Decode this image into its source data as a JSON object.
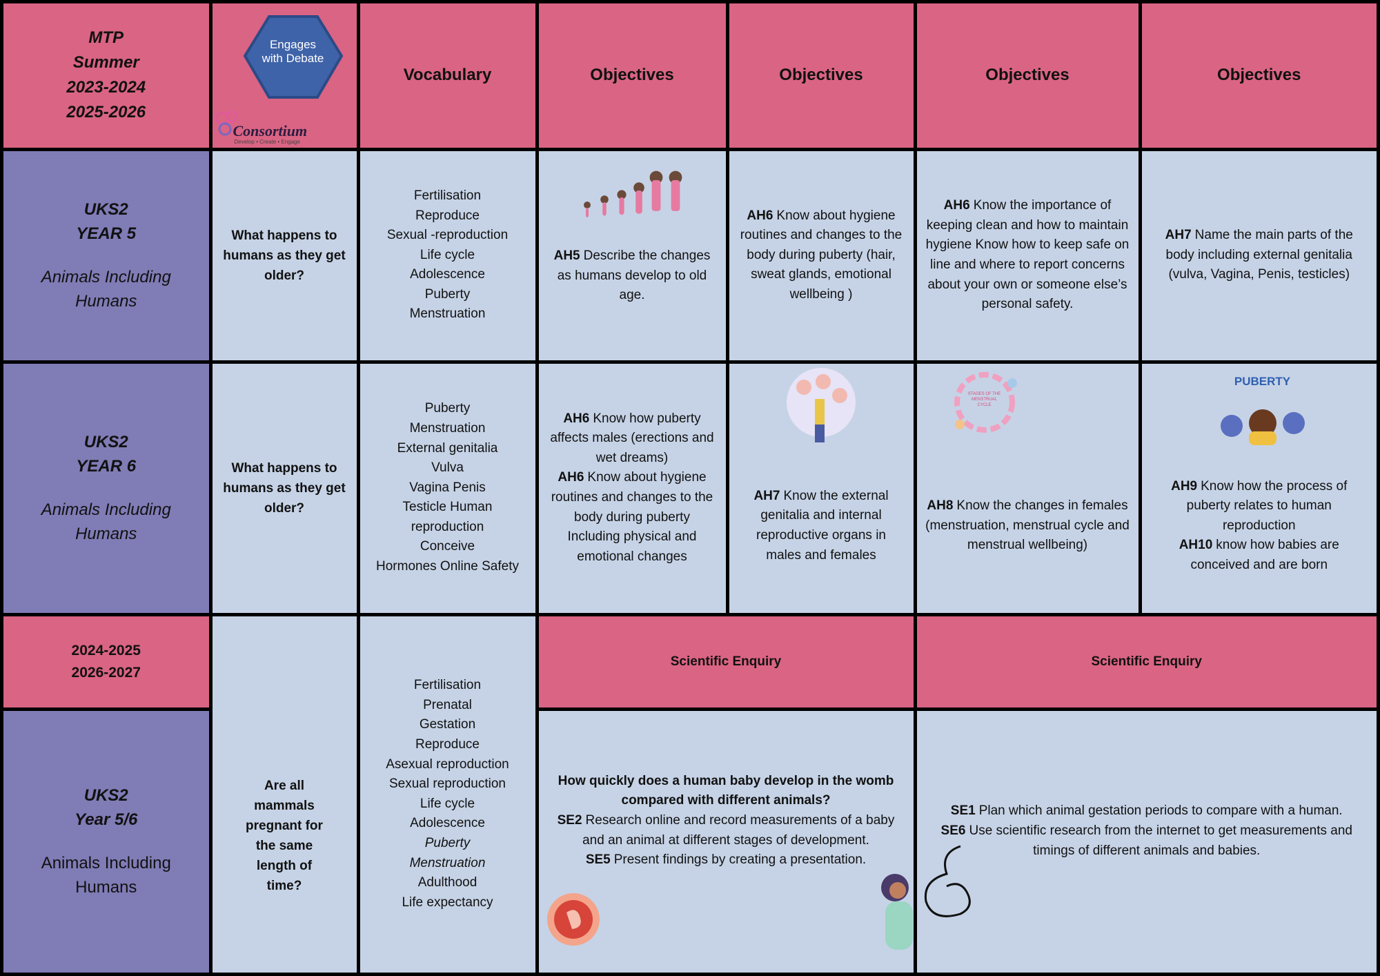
{
  "header": {
    "term": [
      "MTP",
      "Summer",
      "2023-2024",
      "2025-2026"
    ],
    "logo": {
      "badge": "Engages with Debate",
      "brand": "Consortium",
      "tagline": "Develop • Create • Engage"
    },
    "columns": [
      "Vocabulary",
      "Objectives",
      "Objectives",
      "Objectives",
      "Objectives"
    ]
  },
  "rows": [
    {
      "group": "UKS2",
      "year": "YEAR 5",
      "topic": "Animals Including Humans",
      "question": "What happens to humans as they get older?",
      "vocabulary": [
        "Fertilisation",
        "Reproduce",
        "Sexual -reproduction",
        "Life cycle",
        "Adolescence",
        "Puberty",
        "Menstruation"
      ],
      "objectives": [
        [
          {
            "code": "AH5",
            "text": "Describe the changes as humans develop to old age."
          }
        ],
        [
          {
            "code": "AH6",
            "text": "Know about hygiene routines and changes to the body during puberty (hair, sweat glands, emotional wellbeing )"
          }
        ],
        [
          {
            "code": "AH6",
            "text": "Know the importance of keeping clean and how to maintain hygiene Know how to keep safe on line and where to report concerns about your own or someone else’s personal safety."
          }
        ],
        [
          {
            "code": "AH7",
            "text": "Name the main parts of the body including external genitalia (vulva, Vagina, Penis, testicles)"
          }
        ]
      ]
    },
    {
      "group": "UKS2",
      "year": "YEAR 6",
      "topic": "Animals Including Humans",
      "question": "What happens to humans as they get older?",
      "vocabulary": [
        "Puberty",
        "Menstruation",
        "External genitalia",
        "Vulva",
        "Vagina Penis",
        "Testicle Human reproduction",
        "Conceive",
        "Hormones Online Safety"
      ],
      "objectives": [
        [
          {
            "code": "AH6",
            "text": "Know how puberty affects males (erections and wet dreams)"
          },
          {
            "code": "AH6",
            "text": "Know about hygiene routines and changes to the body during puberty Including physical and emotional changes"
          }
        ],
        [
          {
            "code": "AH7",
            "text": "Know the external genitalia and internal reproductive organs in males and females"
          }
        ],
        [
          {
            "code": "AH8",
            "text": "Know the changes in females (menstruation, menstrual cycle and menstrual wellbeing)"
          }
        ],
        [
          {
            "code": "AH9",
            "text": "Know how the process of puberty relates to human reproduction"
          },
          {
            "code": "AH10",
            "text": "know how babies are conceived and are born"
          }
        ]
      ],
      "images": {
        "cycle": "STAGES OF THE MENSTRUAL CYCLE",
        "puberty": "PUBERTY"
      }
    }
  ],
  "mixed": {
    "years": [
      "2024-2025",
      "2026-2027"
    ],
    "group": "UKS2",
    "year": "Year 5/6",
    "topic": "Animals Including Humans",
    "question": "Are all mammals pregnant for the same length of time?",
    "vocabulary": [
      "Fertilisation",
      "Prenatal",
      "Gestation",
      "Reproduce",
      "Asexual reproduction",
      "Sexual reproduction",
      "Life cycle",
      "Adolescence",
      "Puberty",
      "Menstruation",
      "Adulthood",
      "Life expectancy"
    ],
    "enquiry": [
      {
        "heading": "Scientific Enquiry",
        "question": "How quickly does a human baby develop in the womb compared with different animals?",
        "items": [
          {
            "code": "SE2",
            "text": "Research online and record measurements of a baby and an animal at different stages of development."
          },
          {
            "code": "SE5",
            "text": "Present findings by creating a presentation."
          }
        ]
      },
      {
        "heading": "Scientific Enquiry",
        "items": [
          {
            "code": "SE1",
            "text": "Plan which animal gestation periods to compare with a human."
          },
          {
            "code": "SE6",
            "text": "Use scientific research from the internet to get measurements and timings of different animals and babies."
          }
        ]
      }
    ]
  }
}
